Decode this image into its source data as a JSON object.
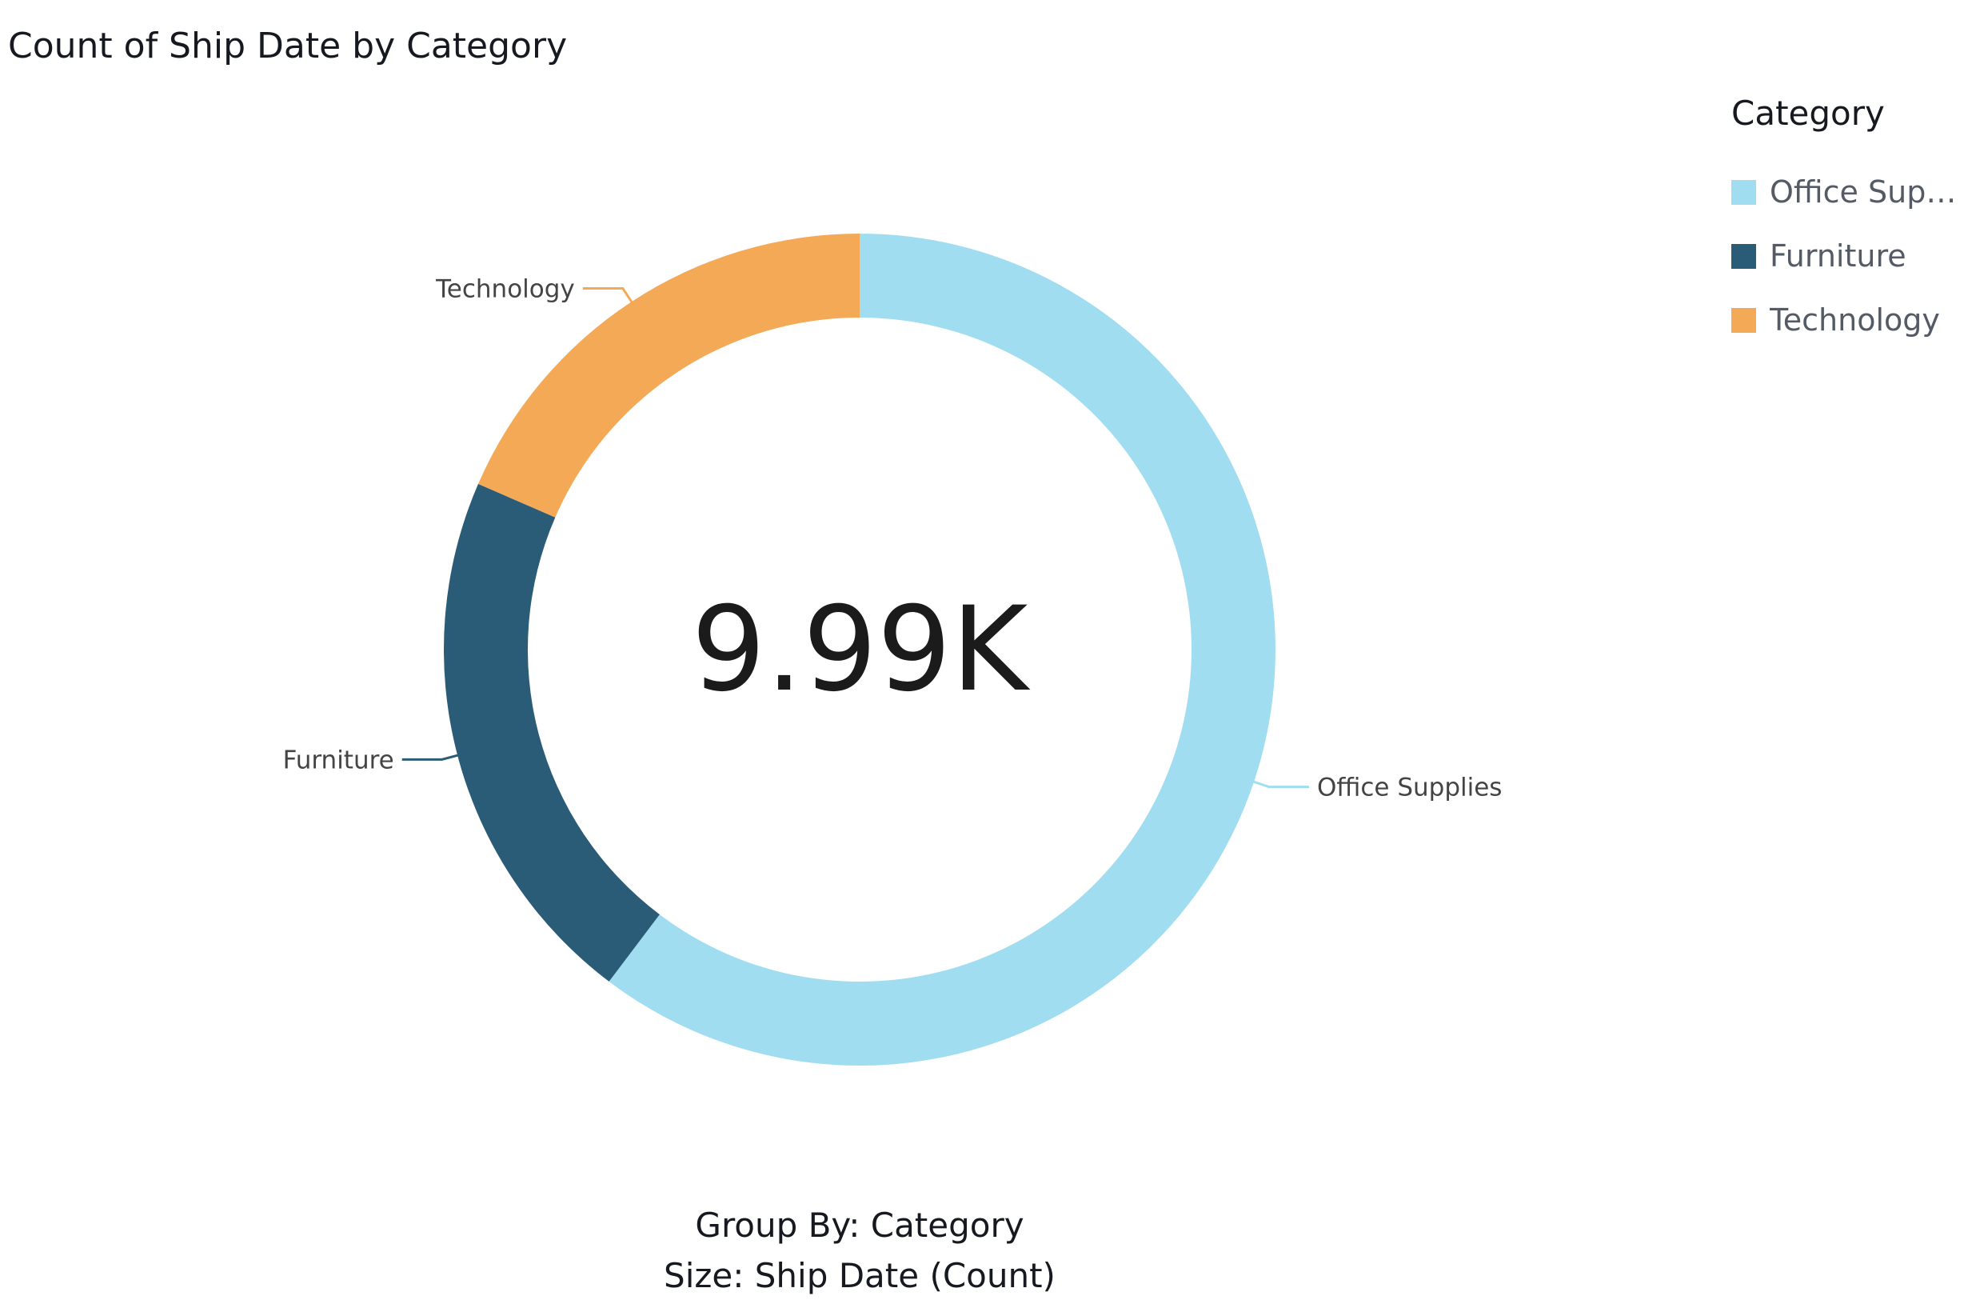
{
  "chart_data": {
    "type": "pie",
    "subtype": "donut",
    "title": "Count of Ship Date by Category",
    "center_label": "9.99K",
    "categories": [
      "Office Supplies",
      "Furniture",
      "Technology"
    ],
    "values": [
      6026,
      2121,
      1847
    ],
    "total": 9994,
    "colors": [
      "#a1ddf0",
      "#2b5c77",
      "#f4a957"
    ],
    "legend": {
      "title": "Category",
      "placement": "right",
      "items": [
        "Office Supp...",
        "Furniture",
        "Technology"
      ]
    },
    "footer": {
      "group_by": "Group By: Category",
      "size": "Size: Ship Date (Count)"
    }
  }
}
